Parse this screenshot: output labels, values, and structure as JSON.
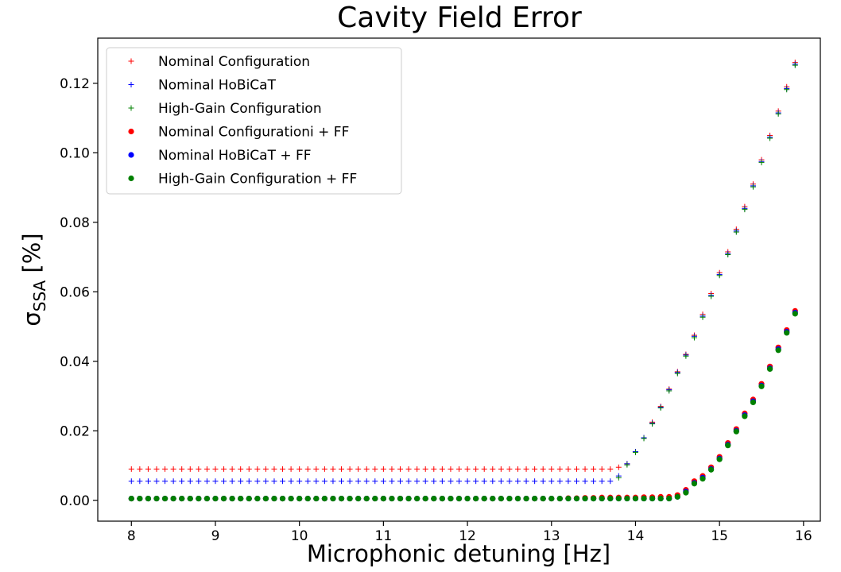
{
  "chart_data": {
    "type": "scatter",
    "title": "Cavity Field Error",
    "xlabel": "Microphonic detuning [Hz]",
    "ylabel": {
      "symbol": "σ",
      "subscript": "SSA",
      "unit": "[%]"
    },
    "xlim": [
      7.6,
      16.2
    ],
    "ylim": [
      -0.006,
      0.133
    ],
    "xticks": [
      8,
      9,
      10,
      11,
      12,
      13,
      14,
      15,
      16
    ],
    "yticks": [
      0.0,
      0.02,
      0.04,
      0.06,
      0.08,
      0.1,
      0.12
    ],
    "ytick_labels": [
      "0.00",
      "0.02",
      "0.04",
      "0.06",
      "0.08",
      "0.10",
      "0.12"
    ],
    "grid": false,
    "legend_position": "top-left",
    "x_start": 8.0,
    "x_step": 0.1,
    "series": [
      {
        "name": "Nominal Configuration",
        "marker": "plus",
        "color": "#ff0000",
        "values": [
          0.009,
          0.009,
          0.009,
          0.009,
          0.009,
          0.009,
          0.009,
          0.009,
          0.009,
          0.009,
          0.009,
          0.009,
          0.009,
          0.009,
          0.009,
          0.009,
          0.009,
          0.009,
          0.009,
          0.009,
          0.009,
          0.009,
          0.009,
          0.009,
          0.009,
          0.009,
          0.009,
          0.009,
          0.009,
          0.009,
          0.009,
          0.009,
          0.009,
          0.009,
          0.009,
          0.009,
          0.009,
          0.009,
          0.009,
          0.009,
          0.009,
          0.009,
          0.009,
          0.009,
          0.009,
          0.009,
          0.009,
          0.009,
          0.009,
          0.009,
          0.009,
          0.009,
          0.009,
          0.009,
          0.009,
          0.009,
          0.009,
          0.009,
          0.0095,
          0.0105,
          0.014,
          0.018,
          0.0225,
          0.027,
          0.032,
          0.037,
          0.042,
          0.0475,
          0.0535,
          0.0595,
          0.0655,
          0.0715,
          0.078,
          0.0845,
          0.091,
          0.098,
          0.105,
          0.112,
          0.119,
          0.126
        ]
      },
      {
        "name": "Nominal HoBiCaT",
        "marker": "plus",
        "color": "#0000ff",
        "values": [
          0.0055,
          0.0055,
          0.0055,
          0.0055,
          0.0055,
          0.0055,
          0.0055,
          0.0055,
          0.0055,
          0.0055,
          0.0055,
          0.0055,
          0.0055,
          0.0055,
          0.0055,
          0.0055,
          0.0055,
          0.0055,
          0.0055,
          0.0055,
          0.0055,
          0.0055,
          0.0055,
          0.0055,
          0.0055,
          0.0055,
          0.0055,
          0.0055,
          0.0055,
          0.0055,
          0.0055,
          0.0055,
          0.0055,
          0.0055,
          0.0055,
          0.0055,
          0.0055,
          0.0055,
          0.0055,
          0.0055,
          0.0055,
          0.0055,
          0.0055,
          0.0055,
          0.0055,
          0.0055,
          0.0055,
          0.0055,
          0.0055,
          0.0055,
          0.0055,
          0.0055,
          0.0055,
          0.0055,
          0.0055,
          0.0055,
          0.0055,
          0.0055,
          0.007,
          0.0105,
          0.014,
          0.018,
          0.0222,
          0.0268,
          0.0318,
          0.0368,
          0.0418,
          0.0472,
          0.053,
          0.059,
          0.065,
          0.071,
          0.0775,
          0.084,
          0.0905,
          0.0975,
          0.1045,
          0.1115,
          0.1185,
          0.1255
        ]
      },
      {
        "name": "High-Gain Configuration",
        "marker": "plus",
        "color": "#008000",
        "values": [
          0.0005,
          0.0005,
          0.0005,
          0.0005,
          0.0005,
          0.0005,
          0.0005,
          0.0005,
          0.0005,
          0.0005,
          0.0005,
          0.0005,
          0.0005,
          0.0005,
          0.0005,
          0.0005,
          0.0005,
          0.0005,
          0.0005,
          0.0005,
          0.0005,
          0.0005,
          0.0005,
          0.0005,
          0.0005,
          0.0005,
          0.0005,
          0.0005,
          0.0005,
          0.0005,
          0.0005,
          0.0005,
          0.0005,
          0.0005,
          0.0005,
          0.0005,
          0.0005,
          0.0005,
          0.0005,
          0.0005,
          0.0005,
          0.0005,
          0.0005,
          0.0005,
          0.0005,
          0.0005,
          0.0005,
          0.0005,
          0.0005,
          0.0005,
          0.0005,
          0.0005,
          0.0005,
          0.0005,
          0.0005,
          0.0005,
          0.0005,
          0.0005,
          0.0065,
          0.0102,
          0.0138,
          0.0178,
          0.022,
          0.0266,
          0.0315,
          0.0365,
          0.0415,
          0.0468,
          0.0527,
          0.0587,
          0.0647,
          0.0707,
          0.0772,
          0.0837,
          0.0902,
          0.0972,
          0.1042,
          0.1112,
          0.1182,
          0.1252
        ]
      },
      {
        "name": "Nominal Configurationi + FF",
        "marker": "dot",
        "color": "#ff0000",
        "values": [
          0.0005,
          0.0005,
          0.0005,
          0.0005,
          0.0005,
          0.0005,
          0.0005,
          0.0005,
          0.0005,
          0.0005,
          0.0005,
          0.0005,
          0.0005,
          0.0005,
          0.0005,
          0.0005,
          0.0005,
          0.0005,
          0.0005,
          0.0005,
          0.0005,
          0.0005,
          0.0005,
          0.0005,
          0.0005,
          0.0005,
          0.0005,
          0.0005,
          0.0005,
          0.0005,
          0.0005,
          0.0005,
          0.0005,
          0.0005,
          0.0005,
          0.0005,
          0.0005,
          0.0005,
          0.0005,
          0.0005,
          0.0005,
          0.0005,
          0.0005,
          0.0005,
          0.0005,
          0.0005,
          0.0005,
          0.0005,
          0.0005,
          0.0005,
          0.0005,
          0.0005,
          0.0006,
          0.0006,
          0.0007,
          0.0007,
          0.0008,
          0.0008,
          0.0008,
          0.0008,
          0.0008,
          0.0009,
          0.0009,
          0.001,
          0.001,
          0.0015,
          0.003,
          0.0055,
          0.007,
          0.0095,
          0.0125,
          0.0165,
          0.0205,
          0.025,
          0.029,
          0.0335,
          0.0385,
          0.044,
          0.049,
          0.0545
        ]
      },
      {
        "name": "Nominal HoBiCaT + FF",
        "marker": "dot",
        "color": "#0000ff",
        "values": [
          0.0005,
          0.0005,
          0.0005,
          0.0005,
          0.0005,
          0.0005,
          0.0005,
          0.0005,
          0.0005,
          0.0005,
          0.0005,
          0.0005,
          0.0005,
          0.0005,
          0.0005,
          0.0005,
          0.0005,
          0.0005,
          0.0005,
          0.0005,
          0.0005,
          0.0005,
          0.0005,
          0.0005,
          0.0005,
          0.0005,
          0.0005,
          0.0005,
          0.0005,
          0.0005,
          0.0005,
          0.0005,
          0.0005,
          0.0005,
          0.0005,
          0.0005,
          0.0005,
          0.0005,
          0.0005,
          0.0005,
          0.0005,
          0.0005,
          0.0005,
          0.0005,
          0.0005,
          0.0005,
          0.0005,
          0.0005,
          0.0005,
          0.0005,
          0.0005,
          0.0005,
          0.0005,
          0.0005,
          0.0005,
          0.0005,
          0.0005,
          0.0005,
          0.0005,
          0.0005,
          0.0005,
          0.0005,
          0.0005,
          0.0005,
          0.0005,
          0.001,
          0.0025,
          0.005,
          0.0065,
          0.009,
          0.012,
          0.016,
          0.02,
          0.0245,
          0.0285,
          0.033,
          0.038,
          0.0435,
          0.0485,
          0.054
        ]
      },
      {
        "name": "High-Gain Configuration + FF",
        "marker": "dot",
        "color": "#008000",
        "values": [
          0.0005,
          0.0005,
          0.0005,
          0.0005,
          0.0005,
          0.0005,
          0.0005,
          0.0005,
          0.0005,
          0.0005,
          0.0005,
          0.0005,
          0.0005,
          0.0005,
          0.0005,
          0.0005,
          0.0005,
          0.0005,
          0.0005,
          0.0005,
          0.0005,
          0.0005,
          0.0005,
          0.0005,
          0.0005,
          0.0005,
          0.0005,
          0.0005,
          0.0005,
          0.0005,
          0.0005,
          0.0005,
          0.0005,
          0.0005,
          0.0005,
          0.0005,
          0.0005,
          0.0005,
          0.0005,
          0.0005,
          0.0005,
          0.0005,
          0.0005,
          0.0005,
          0.0005,
          0.0005,
          0.0005,
          0.0005,
          0.0005,
          0.0005,
          0.0005,
          0.0005,
          0.0005,
          0.0005,
          0.0005,
          0.0005,
          0.0005,
          0.0005,
          0.0005,
          0.0005,
          0.0005,
          0.0005,
          0.0005,
          0.0005,
          0.0005,
          0.001,
          0.0022,
          0.0048,
          0.0062,
          0.0088,
          0.0118,
          0.0158,
          0.0198,
          0.0242,
          0.0282,
          0.0328,
          0.0378,
          0.0432,
          0.0482,
          0.0537
        ]
      }
    ]
  }
}
